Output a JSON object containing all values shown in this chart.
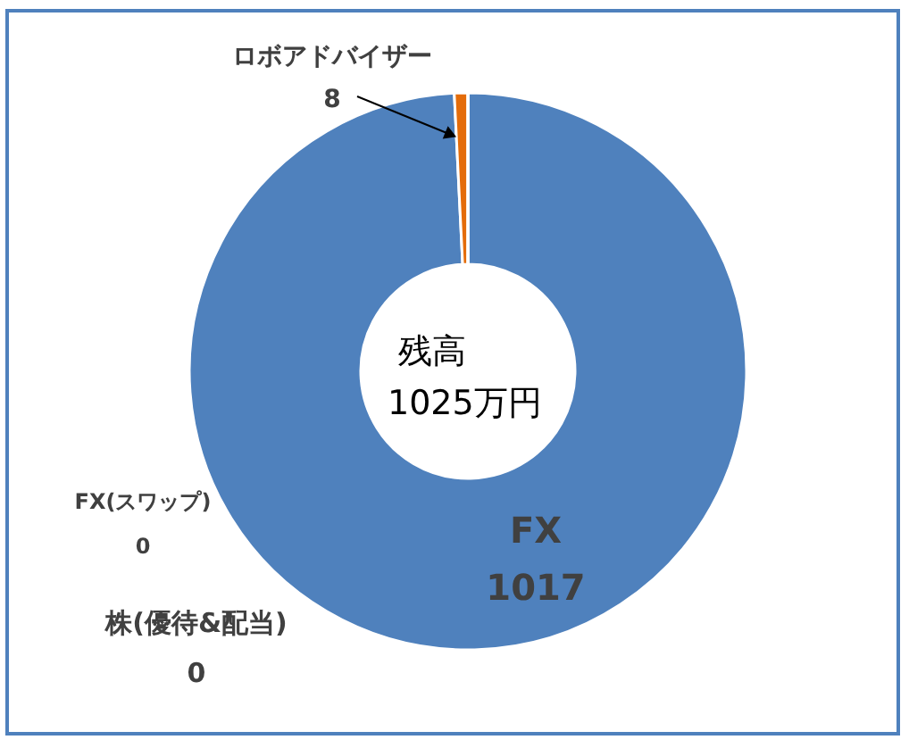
{
  "chart_data": {
    "type": "donut",
    "categories": [
      "FX",
      "ロボアドバイザー",
      "FX(スワップ)",
      "株(優待&配当)"
    ],
    "values": [
      1017,
      8,
      0,
      0
    ],
    "colors": [
      "#4f81bd",
      "#e46c0a",
      null,
      null
    ],
    "value_labels": [
      "1017",
      "8",
      "0",
      "0"
    ],
    "annotations": [
      "残高",
      "1025万円"
    ]
  }
}
